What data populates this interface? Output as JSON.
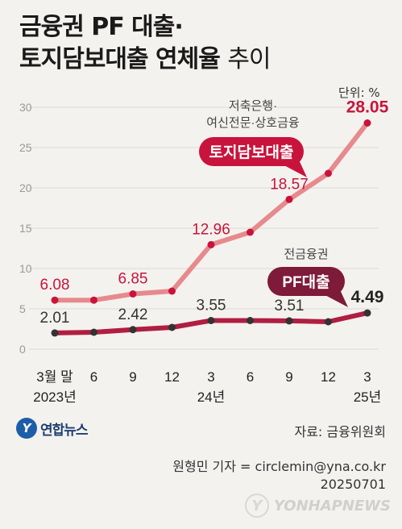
{
  "title": {
    "line1": "금융권 PF 대출·",
    "line2_bold": "토지담보대출 연체율",
    "line2_light": "추이"
  },
  "unit_label": "단위: %",
  "chart_data": {
    "type": "line",
    "x": [
      "3월 말",
      "6",
      "9",
      "12",
      "3",
      "6",
      "9",
      "12",
      "3"
    ],
    "year_labels": [
      {
        "index": 0,
        "text": "2023년"
      },
      {
        "index": 4,
        "text": "24년"
      },
      {
        "index": 8,
        "text": "25년"
      }
    ],
    "ylim": [
      0,
      30
    ],
    "yticks": [
      0,
      5,
      10,
      15,
      20,
      25,
      30
    ],
    "grid": true,
    "series": [
      {
        "name": "토지담보대출",
        "annotation": "저축은행·여신전문·상호금융",
        "color": "#e68a8e",
        "label_color": "#c8143c",
        "badge_color": "#c8143c",
        "values": [
          6.08,
          6.08,
          6.85,
          7.2,
          12.96,
          14.5,
          18.57,
          21.8,
          28.05
        ],
        "labels": [
          "6.08",
          "",
          "6.85",
          "",
          "12.96",
          "",
          "18.57",
          "",
          "28.05"
        ]
      },
      {
        "name": "PF대출",
        "annotation": "전금융권",
        "color": "#b01e42",
        "label_color": "#333333",
        "badge_color": "#7e1a3a",
        "values": [
          2.01,
          2.1,
          2.42,
          2.7,
          3.55,
          3.55,
          3.51,
          3.4,
          4.49
        ],
        "labels": [
          "2.01",
          "",
          "2.42",
          "",
          "3.55",
          "",
          "3.51",
          "",
          "4.49"
        ]
      }
    ]
  },
  "logo": {
    "mark": "Y",
    "text": "연합뉴스"
  },
  "source": "자료: 금융위원회",
  "reporter": {
    "line1": "원형민 기자 = circlemin@yna.co.kr",
    "line2": "20250701"
  },
  "watermark": {
    "mark": "Y",
    "text": "YONHAPNEWS"
  }
}
